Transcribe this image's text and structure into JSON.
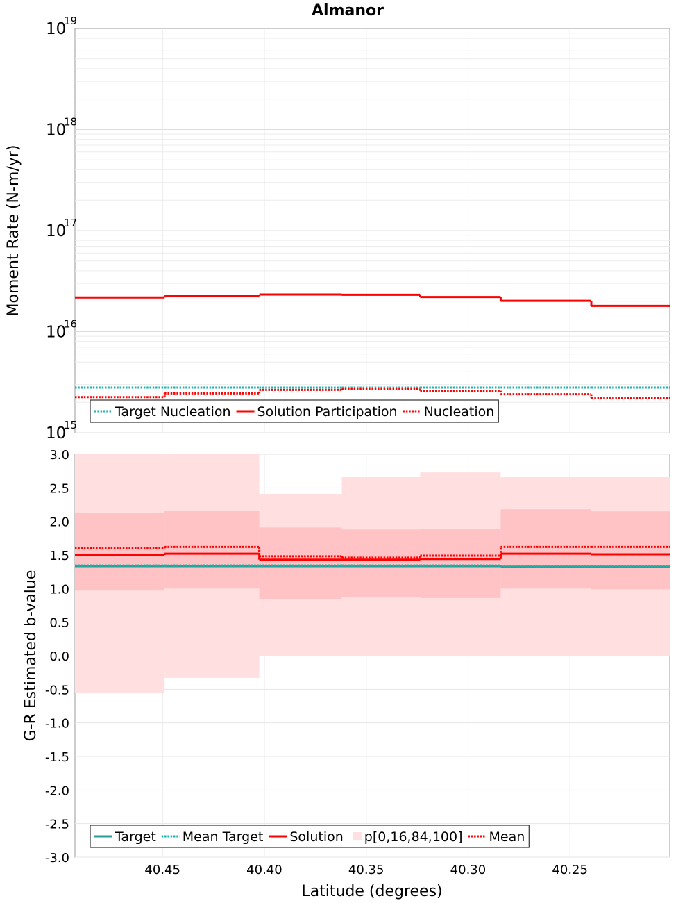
{
  "chart_data": [
    {
      "type": "line",
      "title": "Almanor",
      "ylabel": "Moment Rate (N-m/yr)",
      "yscale": "log",
      "ylim": [
        1000000000000000.0,
        1e+19
      ],
      "yticks": [
        {
          "base": "10",
          "exp": "15"
        },
        {
          "base": "10",
          "exp": "16"
        },
        {
          "base": "10",
          "exp": "17"
        },
        {
          "base": "10",
          "exp": "18"
        },
        {
          "base": "10",
          "exp": "19"
        }
      ],
      "xlim": [
        40.493,
        40.201
      ],
      "bin_edges": [
        40.493,
        40.449,
        40.4025,
        40.362,
        40.3235,
        40.284,
        40.2395,
        40.201
      ],
      "series": [
        {
          "name": "Target Nucleation",
          "color": "#17b6b0",
          "style": "dotted",
          "values": [
            2800000000000000.0,
            2800000000000000.0,
            2800000000000000.0,
            2800000000000000.0,
            2800000000000000.0,
            2800000000000000.0,
            2800000000000000.0
          ]
        },
        {
          "name": "Solution Participation",
          "color": "#ff0000",
          "style": "solid",
          "values": [
            2.18e+16,
            2.25e+16,
            2.33e+16,
            2.32e+16,
            2.2e+16,
            2.02e+16,
            1.8e+16
          ]
        },
        {
          "name": "Nucleation",
          "color": "#ff0000",
          "style": "dotted",
          "values": [
            2250000000000000.0,
            2450000000000000.0,
            2650000000000000.0,
            2700000000000000.0,
            2600000000000000.0,
            2400000000000000.0,
            2200000000000000.0
          ]
        }
      ],
      "legend": [
        "Target Nucleation",
        "Solution Participation",
        "Nucleation"
      ]
    },
    {
      "type": "line",
      "title": "",
      "xlabel": "Latitude (degrees)",
      "ylabel": "G-R Estimated b-value",
      "ylim": [
        -3.0,
        3.0
      ],
      "yticks": [
        "3.0",
        "2.5",
        "2.0",
        "1.5",
        "1.0",
        "0.5",
        "0.0",
        "-0.5",
        "-1.0",
        "-1.5",
        "-2.0",
        "-2.5",
        "-3.0"
      ],
      "xlim": [
        40.493,
        40.201
      ],
      "xticks": [
        "40.45",
        "40.40",
        "40.35",
        "40.30",
        "40.25"
      ],
      "bin_edges": [
        40.493,
        40.449,
        40.4025,
        40.362,
        40.3235,
        40.284,
        40.2395,
        40.201
      ],
      "band_outer": {
        "low": [
          -0.55,
          -0.33,
          0.0,
          0.0,
          0.0,
          0.0,
          0.0
        ],
        "high": [
          3.0,
          3.0,
          2.41,
          2.66,
          2.73,
          2.66,
          2.66
        ]
      },
      "band_inner": {
        "low": [
          0.97,
          1.0,
          0.84,
          0.87,
          0.86,
          1.0,
          0.99
        ],
        "high": [
          2.13,
          2.16,
          1.91,
          1.88,
          1.89,
          2.18,
          2.15
        ]
      },
      "band_colors": {
        "outer": "#ffdfe0",
        "inner": "#ffc3c5"
      },
      "series": [
        {
          "name": "Target",
          "color": "#2a9d95",
          "style": "solid",
          "values": [
            1.335,
            1.335,
            1.335,
            1.335,
            1.335,
            1.325,
            1.325
          ]
        },
        {
          "name": "Mean Target",
          "color": "#17b6b0",
          "style": "dotted",
          "values": [
            1.345,
            1.345,
            1.345,
            1.345,
            1.345,
            1.335,
            1.335
          ]
        },
        {
          "name": "Solution",
          "color": "#ff0000",
          "style": "solid",
          "values": [
            1.5,
            1.52,
            1.43,
            1.43,
            1.44,
            1.52,
            1.51
          ]
        },
        {
          "name": "Mean",
          "color": "#ff0000",
          "style": "dotted",
          "values": [
            1.6,
            1.62,
            1.48,
            1.46,
            1.49,
            1.62,
            1.62
          ]
        }
      ],
      "legend": [
        "Target",
        "Mean Target",
        "Solution",
        "p[0,16,84,100]",
        "Mean"
      ]
    }
  ]
}
